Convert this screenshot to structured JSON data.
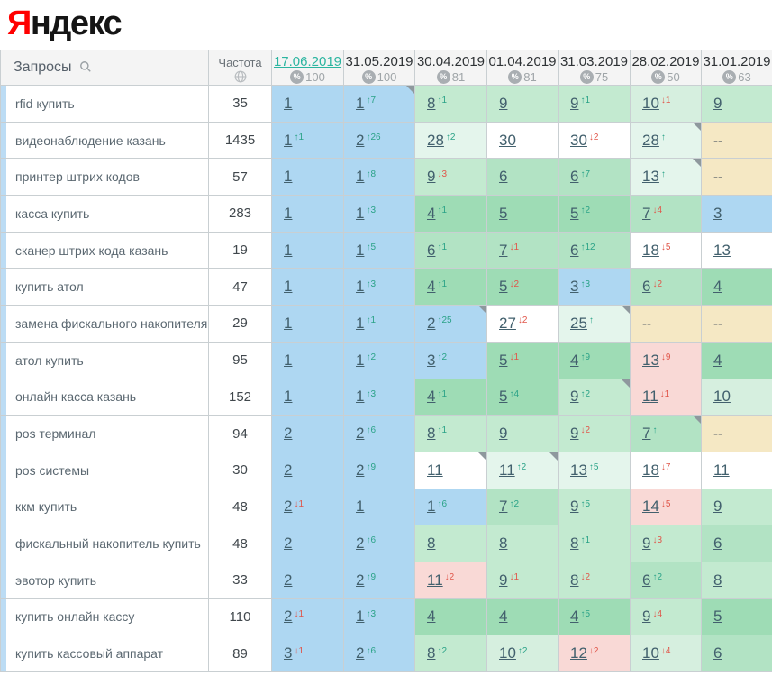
{
  "logo": {
    "first_letter": "Я",
    "rest": "ндекс"
  },
  "colors": {
    "logo_red": "#ff0000",
    "logo_black": "#151515",
    "active_date": "#2bb5a0",
    "delta_up": "#2aa287",
    "delta_down": "#e0564a",
    "position_link": "#42606d",
    "cell_bg": {
      "b": "#aed7f2",
      "g1": "#9edcb5",
      "g2": "#b2e3c4",
      "g3": "#c3ead0",
      "g4": "#d6efdf",
      "m": "#e4f5ec",
      "w": "#ffffff",
      "p": "#f9d9d6",
      "y": "#f5e8c4"
    }
  },
  "table": {
    "queries_header": "Запросы",
    "frequency_header": "Частота",
    "icons": {
      "search": "magnifier-icon",
      "globe": "globe-icon",
      "percent": "%"
    },
    "columns": [
      {
        "date": "17.06.2019",
        "percent": "100",
        "active": true
      },
      {
        "date": "31.05.2019",
        "percent": "100",
        "active": false
      },
      {
        "date": "30.04.2019",
        "percent": "81",
        "active": false
      },
      {
        "date": "01.04.2019",
        "percent": "81",
        "active": false
      },
      {
        "date": "31.03.2019",
        "percent": "75",
        "active": false
      },
      {
        "date": "28.02.2019",
        "percent": "50",
        "active": false
      },
      {
        "date": "31.01.2019",
        "percent": "63",
        "active": false
      }
    ],
    "rows": [
      {
        "query": "rfid купить",
        "frequency": "35",
        "cells": [
          {
            "pos": "1",
            "bg": "b"
          },
          {
            "pos": "1",
            "delta": "7",
            "dir": "up",
            "bg": "b",
            "flag": true
          },
          {
            "pos": "8",
            "delta": "1",
            "dir": "up",
            "bg": "g3"
          },
          {
            "pos": "9",
            "bg": "g3"
          },
          {
            "pos": "9",
            "delta": "1",
            "dir": "up",
            "bg": "g3"
          },
          {
            "pos": "10",
            "delta": "1",
            "dir": "down",
            "bg": "g4"
          },
          {
            "pos": "9",
            "bg": "g3"
          }
        ]
      },
      {
        "query": "видеонаблюдение казань",
        "frequency": "1435",
        "cells": [
          {
            "pos": "1",
            "delta": "1",
            "dir": "up",
            "bg": "b"
          },
          {
            "pos": "2",
            "delta": "26",
            "dir": "up",
            "bg": "b"
          },
          {
            "pos": "28",
            "delta": "2",
            "dir": "up",
            "bg": "m"
          },
          {
            "pos": "30",
            "bg": "w"
          },
          {
            "pos": "30",
            "delta": "2",
            "dir": "down",
            "bg": "w"
          },
          {
            "pos": "28",
            "dir": "up",
            "bg": "m",
            "flag": true
          },
          {
            "pos": "--",
            "bg": "y"
          }
        ]
      },
      {
        "query": "принтер штрих кодов",
        "frequency": "57",
        "cells": [
          {
            "pos": "1",
            "bg": "b"
          },
          {
            "pos": "1",
            "delta": "8",
            "dir": "up",
            "bg": "b"
          },
          {
            "pos": "9",
            "delta": "3",
            "dir": "down",
            "bg": "g3"
          },
          {
            "pos": "6",
            "bg": "g2"
          },
          {
            "pos": "6",
            "delta": "7",
            "dir": "up",
            "bg": "g2"
          },
          {
            "pos": "13",
            "dir": "up",
            "bg": "m",
            "flag": true
          },
          {
            "pos": "--",
            "bg": "y"
          }
        ]
      },
      {
        "query": "касса купить",
        "frequency": "283",
        "cells": [
          {
            "pos": "1",
            "bg": "b"
          },
          {
            "pos": "1",
            "delta": "3",
            "dir": "up",
            "bg": "b"
          },
          {
            "pos": "4",
            "delta": "1",
            "dir": "up",
            "bg": "g1"
          },
          {
            "pos": "5",
            "bg": "g1"
          },
          {
            "pos": "5",
            "delta": "2",
            "dir": "up",
            "bg": "g1"
          },
          {
            "pos": "7",
            "delta": "4",
            "dir": "down",
            "bg": "g2"
          },
          {
            "pos": "3",
            "bg": "b"
          }
        ]
      },
      {
        "query": "сканер штрих кода казань",
        "frequency": "19",
        "cells": [
          {
            "pos": "1",
            "bg": "b"
          },
          {
            "pos": "1",
            "delta": "5",
            "dir": "up",
            "bg": "b"
          },
          {
            "pos": "6",
            "delta": "1",
            "dir": "up",
            "bg": "g2"
          },
          {
            "pos": "7",
            "delta": "1",
            "dir": "down",
            "bg": "g2"
          },
          {
            "pos": "6",
            "delta": "12",
            "dir": "up",
            "bg": "g2"
          },
          {
            "pos": "18",
            "delta": "5",
            "dir": "down",
            "bg": "w"
          },
          {
            "pos": "13",
            "bg": "w"
          }
        ]
      },
      {
        "query": "купить атол",
        "frequency": "47",
        "cells": [
          {
            "pos": "1",
            "bg": "b"
          },
          {
            "pos": "1",
            "delta": "3",
            "dir": "up",
            "bg": "b"
          },
          {
            "pos": "4",
            "delta": "1",
            "dir": "up",
            "bg": "g1"
          },
          {
            "pos": "5",
            "delta": "2",
            "dir": "down",
            "bg": "g1"
          },
          {
            "pos": "3",
            "delta": "3",
            "dir": "up",
            "bg": "b"
          },
          {
            "pos": "6",
            "delta": "2",
            "dir": "down",
            "bg": "g2"
          },
          {
            "pos": "4",
            "bg": "g1"
          }
        ]
      },
      {
        "query": "замена фискального накопителя",
        "frequency": "29",
        "cells": [
          {
            "pos": "1",
            "bg": "b"
          },
          {
            "pos": "1",
            "delta": "1",
            "dir": "up",
            "bg": "b"
          },
          {
            "pos": "2",
            "delta": "25",
            "dir": "up",
            "bg": "b",
            "flag": true
          },
          {
            "pos": "27",
            "delta": "2",
            "dir": "down",
            "bg": "w"
          },
          {
            "pos": "25",
            "dir": "up",
            "bg": "m",
            "flag": true
          },
          {
            "pos": "--",
            "bg": "y"
          },
          {
            "pos": "--",
            "bg": "y"
          }
        ]
      },
      {
        "query": "атол купить",
        "frequency": "95",
        "cells": [
          {
            "pos": "1",
            "bg": "b"
          },
          {
            "pos": "1",
            "delta": "2",
            "dir": "up",
            "bg": "b"
          },
          {
            "pos": "3",
            "delta": "2",
            "dir": "up",
            "bg": "b"
          },
          {
            "pos": "5",
            "delta": "1",
            "dir": "down",
            "bg": "g1"
          },
          {
            "pos": "4",
            "delta": "9",
            "dir": "up",
            "bg": "g1"
          },
          {
            "pos": "13",
            "delta": "9",
            "dir": "down",
            "bg": "p"
          },
          {
            "pos": "4",
            "bg": "g1"
          }
        ]
      },
      {
        "query": "онлайн касса казань",
        "frequency": "152",
        "cells": [
          {
            "pos": "1",
            "bg": "b"
          },
          {
            "pos": "1",
            "delta": "3",
            "dir": "up",
            "bg": "b"
          },
          {
            "pos": "4",
            "delta": "1",
            "dir": "up",
            "bg": "g1"
          },
          {
            "pos": "5",
            "delta": "4",
            "dir": "up",
            "bg": "g1"
          },
          {
            "pos": "9",
            "delta": "2",
            "dir": "up",
            "bg": "g3",
            "flag": true
          },
          {
            "pos": "11",
            "delta": "1",
            "dir": "down",
            "bg": "p"
          },
          {
            "pos": "10",
            "bg": "g4"
          }
        ]
      },
      {
        "query": "pos терминал",
        "frequency": "94",
        "cells": [
          {
            "pos": "2",
            "bg": "b"
          },
          {
            "pos": "2",
            "delta": "6",
            "dir": "up",
            "bg": "b"
          },
          {
            "pos": "8",
            "delta": "1",
            "dir": "up",
            "bg": "g3"
          },
          {
            "pos": "9",
            "bg": "g3"
          },
          {
            "pos": "9",
            "delta": "2",
            "dir": "down",
            "bg": "g3"
          },
          {
            "pos": "7",
            "dir": "up",
            "bg": "g2",
            "flag": true
          },
          {
            "pos": "--",
            "bg": "y"
          }
        ]
      },
      {
        "query": "pos системы",
        "frequency": "30",
        "cells": [
          {
            "pos": "2",
            "bg": "b"
          },
          {
            "pos": "2",
            "delta": "9",
            "dir": "up",
            "bg": "b"
          },
          {
            "pos": "11",
            "bg": "w",
            "flag": true
          },
          {
            "pos": "11",
            "delta": "2",
            "dir": "up",
            "bg": "m",
            "flag": true
          },
          {
            "pos": "13",
            "delta": "5",
            "dir": "up",
            "bg": "m"
          },
          {
            "pos": "18",
            "delta": "7",
            "dir": "down",
            "bg": "w"
          },
          {
            "pos": "11",
            "bg": "w"
          }
        ]
      },
      {
        "query": "ккм купить",
        "frequency": "48",
        "cells": [
          {
            "pos": "2",
            "delta": "1",
            "dir": "down",
            "bg": "b"
          },
          {
            "pos": "1",
            "bg": "b"
          },
          {
            "pos": "1",
            "delta": "6",
            "dir": "up",
            "bg": "b"
          },
          {
            "pos": "7",
            "delta": "2",
            "dir": "up",
            "bg": "g2"
          },
          {
            "pos": "9",
            "delta": "5",
            "dir": "up",
            "bg": "g3"
          },
          {
            "pos": "14",
            "delta": "5",
            "dir": "down",
            "bg": "p"
          },
          {
            "pos": "9",
            "bg": "g3"
          }
        ]
      },
      {
        "query": "фискальный накопитель купить",
        "frequency": "48",
        "cells": [
          {
            "pos": "2",
            "bg": "b"
          },
          {
            "pos": "2",
            "delta": "6",
            "dir": "up",
            "bg": "b"
          },
          {
            "pos": "8",
            "bg": "g3"
          },
          {
            "pos": "8",
            "bg": "g3"
          },
          {
            "pos": "8",
            "delta": "1",
            "dir": "up",
            "bg": "g3"
          },
          {
            "pos": "9",
            "delta": "3",
            "dir": "down",
            "bg": "g3"
          },
          {
            "pos": "6",
            "bg": "g2"
          }
        ]
      },
      {
        "query": "эвотор купить",
        "frequency": "33",
        "cells": [
          {
            "pos": "2",
            "bg": "b"
          },
          {
            "pos": "2",
            "delta": "9",
            "dir": "up",
            "bg": "b"
          },
          {
            "pos": "11",
            "delta": "2",
            "dir": "down",
            "bg": "p"
          },
          {
            "pos": "9",
            "delta": "1",
            "dir": "down",
            "bg": "g3"
          },
          {
            "pos": "8",
            "delta": "2",
            "dir": "down",
            "bg": "g3"
          },
          {
            "pos": "6",
            "delta": "2",
            "dir": "up",
            "bg": "g2"
          },
          {
            "pos": "8",
            "bg": "g3"
          }
        ]
      },
      {
        "query": "купить онлайн кассу",
        "frequency": "110",
        "cells": [
          {
            "pos": "2",
            "delta": "1",
            "dir": "down",
            "bg": "b"
          },
          {
            "pos": "1",
            "delta": "3",
            "dir": "up",
            "bg": "b"
          },
          {
            "pos": "4",
            "bg": "g1"
          },
          {
            "pos": "4",
            "bg": "g1"
          },
          {
            "pos": "4",
            "delta": "5",
            "dir": "up",
            "bg": "g1"
          },
          {
            "pos": "9",
            "delta": "4",
            "dir": "down",
            "bg": "g3"
          },
          {
            "pos": "5",
            "bg": "g1"
          }
        ]
      },
      {
        "query": "купить кассовый аппарат",
        "frequency": "89",
        "cells": [
          {
            "pos": "3",
            "delta": "1",
            "dir": "down",
            "bg": "b"
          },
          {
            "pos": "2",
            "delta": "6",
            "dir": "up",
            "bg": "b"
          },
          {
            "pos": "8",
            "delta": "2",
            "dir": "up",
            "bg": "g3"
          },
          {
            "pos": "10",
            "delta": "2",
            "dir": "up",
            "bg": "g4"
          },
          {
            "pos": "12",
            "delta": "2",
            "dir": "down",
            "bg": "p"
          },
          {
            "pos": "10",
            "delta": "4",
            "dir": "down",
            "bg": "g4"
          },
          {
            "pos": "6",
            "bg": "g2"
          }
        ]
      }
    ]
  }
}
